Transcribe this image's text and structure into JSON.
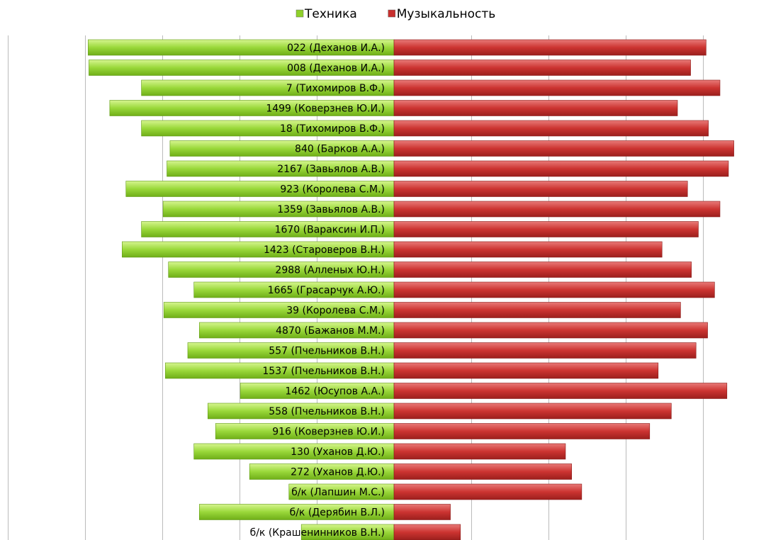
{
  "chart_data": {
    "type": "butterfly-bar",
    "categories": [
      "022 (Деханов И.А.)",
      "008 (Деханов И.А.)",
      "7 (Тихомиров В.Ф.)",
      "1499 (Коверзнев Ю.И.)",
      "18 (Тихомиров В.Ф.)",
      "840 (Барков А.А.)",
      "2167 (Завьялов А.В.)",
      "923 (Королева С.М.)",
      "1359 (Завьялов А.В.)",
      "1670 (Вараксин И.П.)",
      "1423 (Староверов В.Н.)",
      "2988 (Алленых Ю.Н.)",
      "1665 (Грасарчук А.Ю.)",
      "39 (Королева С.М.)",
      "4870 (Бажанов М.М.)",
      "557 (Пчельников В.Н.)",
      "1537 (Пчельников В.Н.)",
      "1462 (Юсупов А.А.)",
      "558 (Пчельников В.Н.)",
      "916 (Коверзнев Ю.И.)",
      "130 (Уханов Д.Ю.)",
      "272 (Уханов Д.Ю.)",
      "б/к (Лапшин М.С.)",
      "б/к (Дерябин В.Л.)",
      "б/к (Крашенинников В.Н.)"
    ],
    "series": [
      {
        "name": "Техника",
        "color": "#8fd12a",
        "side": "left",
        "values": [
          3.96,
          3.95,
          3.27,
          3.68,
          3.27,
          2.9,
          2.94,
          3.47,
          2.99,
          3.27,
          3.52,
          2.92,
          2.59,
          2.98,
          2.52,
          2.67,
          2.96,
          1.99,
          2.41,
          2.31,
          2.59,
          1.87,
          1.36,
          2.52,
          1.2
        ]
      },
      {
        "name": "Музыкальность",
        "color": "#c8302e",
        "side": "right",
        "values": [
          4.04,
          3.84,
          4.22,
          3.67,
          4.07,
          4.4,
          4.33,
          3.8,
          4.22,
          3.94,
          3.47,
          3.85,
          4.15,
          3.71,
          4.06,
          3.91,
          3.42,
          4.31,
          3.59,
          3.31,
          2.22,
          2.3,
          2.43,
          0.73,
          0.86
        ]
      }
    ],
    "xlim": [
      -5,
      5
    ],
    "xticks": [
      -5,
      -4,
      -3,
      -2,
      -1,
      1,
      2,
      3,
      4
    ],
    "grid": true,
    "legend": "top"
  }
}
